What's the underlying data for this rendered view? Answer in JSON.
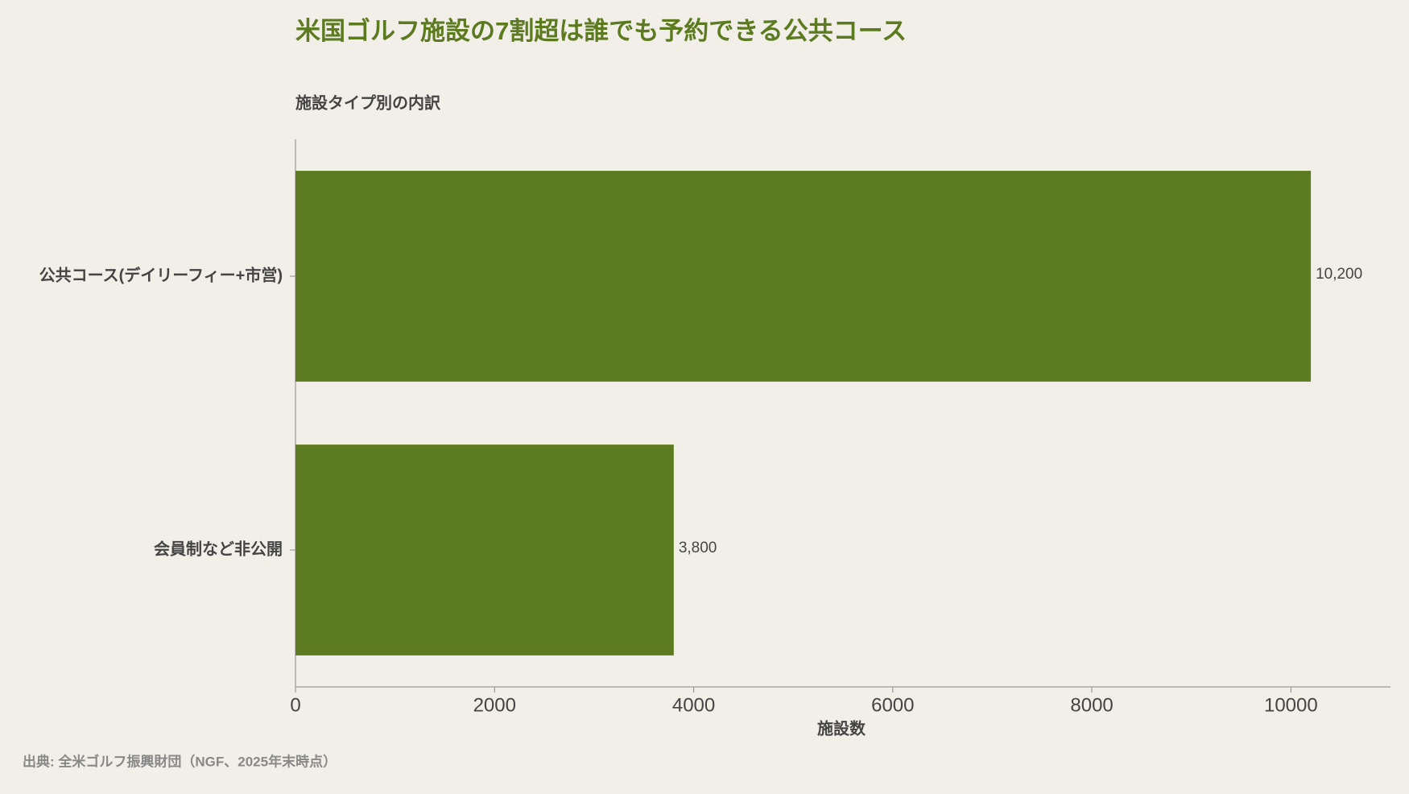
{
  "chart_data": {
    "type": "hbar",
    "title": "米国ゴルフ施設の7割超は誰でも予約できる公共コース",
    "subtitle": "施設タイプ別の内訳",
    "x_label": "施設数",
    "source": "出典: 全米ゴルフ振興財団（NGF、2025年末時点）",
    "categories": [
      "公共コース(デイリーフィー+市営)",
      "会員制など非公開"
    ],
    "values": [
      10200,
      3800
    ],
    "value_labels": [
      "10,200",
      "3,800"
    ],
    "color": "#5c7a1f",
    "xlim": [
      0,
      11000
    ],
    "xticks": [
      0,
      2000,
      4000,
      6000,
      8000,
      10000
    ]
  }
}
